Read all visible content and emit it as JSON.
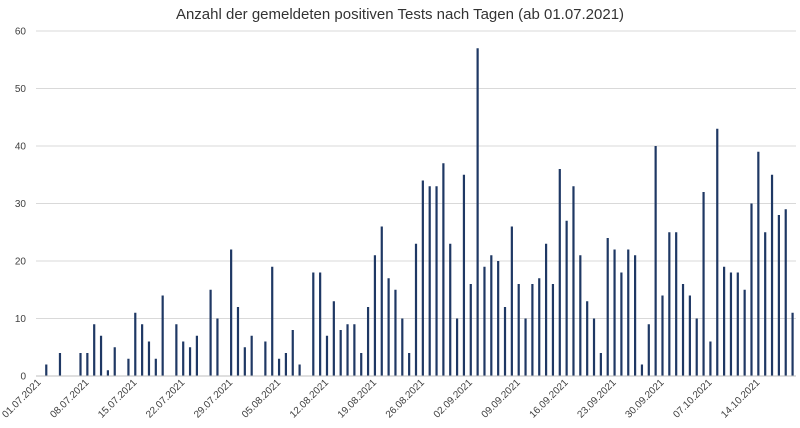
{
  "chart_data": {
    "type": "bar",
    "title": "Anzahl der gemeldeten positiven Tests nach Tagen (ab 01.07.2021)",
    "xlabel": "",
    "ylabel": "",
    "ylim": [
      0,
      60
    ],
    "yticks": [
      0,
      10,
      20,
      30,
      40,
      50,
      60
    ],
    "grid": true,
    "legend": "none",
    "bar_color": "#1f3864",
    "grid_color": "#d9d9d9",
    "x_tick_labels": [
      {
        "index": 0,
        "label": "01.07.2021"
      },
      {
        "index": 7,
        "label": "08.07.2021"
      },
      {
        "index": 14,
        "label": "15.07.2021"
      },
      {
        "index": 21,
        "label": "22.07.2021"
      },
      {
        "index": 28,
        "label": "29.07.2021"
      },
      {
        "index": 35,
        "label": "05.08.2021"
      },
      {
        "index": 42,
        "label": "12.08.2021"
      },
      {
        "index": 49,
        "label": "19.08.2021"
      },
      {
        "index": 56,
        "label": "26.08.2021"
      },
      {
        "index": 63,
        "label": "02.09.2021"
      },
      {
        "index": 70,
        "label": "09.09.2021"
      },
      {
        "index": 77,
        "label": "16.09.2021"
      },
      {
        "index": 84,
        "label": "23.09.2021"
      },
      {
        "index": 91,
        "label": "30.09.2021"
      },
      {
        "index": 98,
        "label": "07.10.2021"
      },
      {
        "index": 105,
        "label": "14.10.2021"
      }
    ],
    "values": [
      0,
      2,
      0,
      4,
      0,
      0,
      4,
      4,
      9,
      7,
      1,
      5,
      0,
      3,
      11,
      9,
      6,
      3,
      14,
      0,
      9,
      6,
      5,
      7,
      0,
      15,
      10,
      0,
      22,
      12,
      5,
      7,
      0,
      6,
      19,
      3,
      4,
      8,
      2,
      0,
      18,
      18,
      7,
      13,
      8,
      9,
      9,
      4,
      12,
      21,
      26,
      17,
      15,
      10,
      4,
      23,
      34,
      33,
      33,
      37,
      23,
      10,
      35,
      16,
      57,
      19,
      21,
      20,
      12,
      26,
      16,
      10,
      16,
      17,
      23,
      16,
      36,
      27,
      33,
      21,
      13,
      10,
      4,
      24,
      22,
      18,
      22,
      21,
      2,
      9,
      40,
      14,
      25,
      25,
      16,
      14,
      10,
      32,
      6,
      43,
      19,
      18,
      18,
      15,
      30,
      39,
      25,
      35,
      28,
      29,
      11
    ]
  }
}
